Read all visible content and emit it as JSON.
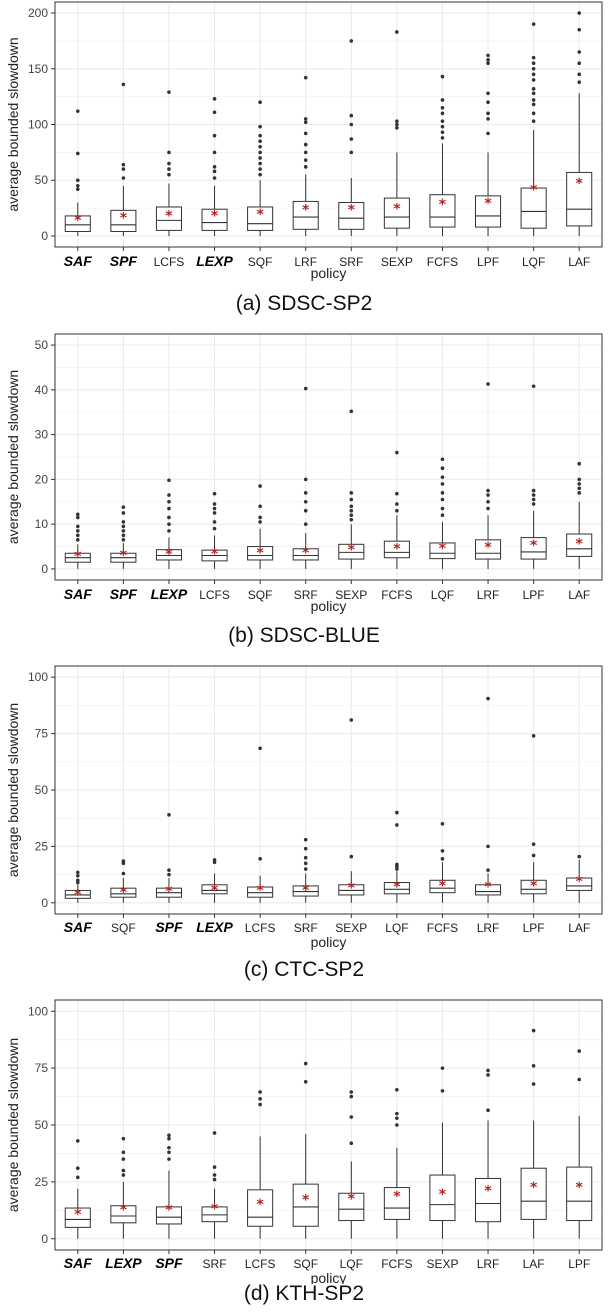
{
  "colors": {
    "mean": "#b22222",
    "outlier": "#333333",
    "grid": "#ebebeb",
    "box": "#333333"
  },
  "captions": [
    "(a) SDSC-SP2",
    "(b) SDSC-BLUE",
    "(c) CTC-SP2",
    "(d) KTH-SP2"
  ],
  "chart_data": [
    {
      "type": "box",
      "caption": "(a) SDSC-SP2",
      "xlabel": "policy",
      "ylabel": "average bounded slowdown",
      "ylim": [
        0,
        200
      ],
      "yticks": [
        0,
        50,
        100,
        150,
        200
      ],
      "grid": true,
      "categories": [
        "SAF",
        "SPF",
        "LCFS",
        "LEXP",
        "SQF",
        "LRF",
        "SRF",
        "SEXP",
        "FCFS",
        "LPF",
        "LQF",
        "LAF"
      ],
      "bold_categories": [
        "SAF",
        "SPF",
        "LEXP"
      ],
      "boxes": [
        {
          "min": 0,
          "q1": 4,
          "median": 10,
          "q3": 18,
          "max": 30,
          "mean": 15,
          "outliers": [
            42,
            45,
            50,
            74,
            112
          ]
        },
        {
          "min": 0,
          "q1": 4,
          "median": 10,
          "q3": 23,
          "max": 45,
          "mean": 17,
          "outliers": [
            52,
            60,
            64,
            136
          ]
        },
        {
          "min": 0,
          "q1": 5,
          "median": 14,
          "q3": 26,
          "max": 47,
          "mean": 19,
          "outliers": [
            55,
            60,
            65,
            75,
            129
          ]
        },
        {
          "min": 0,
          "q1": 5,
          "median": 12,
          "q3": 24,
          "max": 45,
          "mean": 19,
          "outliers": [
            52,
            58,
            62,
            75,
            90,
            111,
            123
          ]
        },
        {
          "min": 0,
          "q1": 5,
          "median": 11,
          "q3": 26,
          "max": 50,
          "mean": 20,
          "outliers": [
            55,
            60,
            65,
            70,
            75,
            80,
            85,
            90,
            98,
            120
          ]
        },
        {
          "min": 0,
          "q1": 6,
          "median": 17,
          "q3": 31,
          "max": 55,
          "mean": 24,
          "outliers": [
            62,
            68,
            75,
            82,
            92,
            102,
            105,
            142
          ]
        },
        {
          "min": 0,
          "q1": 6,
          "median": 16,
          "q3": 30,
          "max": 52,
          "mean": 24,
          "outliers": [
            75,
            87,
            100,
            108,
            175
          ]
        },
        {
          "min": 0,
          "q1": 7,
          "median": 17,
          "q3": 34,
          "max": 75,
          "mean": 25,
          "outliers": [
            97,
            100,
            103,
            183
          ]
        },
        {
          "min": 0,
          "q1": 8,
          "median": 17,
          "q3": 37,
          "max": 83,
          "mean": 29,
          "outliers": [
            88,
            93,
            98,
            103,
            110,
            115,
            122,
            143
          ]
        },
        {
          "min": 0,
          "q1": 8,
          "median": 18,
          "q3": 36,
          "max": 75,
          "mean": 30,
          "outliers": [
            92,
            105,
            110,
            120,
            128,
            155,
            158,
            162
          ]
        },
        {
          "min": 0,
          "q1": 7,
          "median": 22,
          "q3": 43,
          "max": 95,
          "mean": 42,
          "outliers": [
            103,
            110,
            118,
            122,
            128,
            132,
            140,
            145,
            150,
            155,
            160,
            190
          ]
        },
        {
          "min": 0,
          "q1": 9,
          "median": 24,
          "q3": 57,
          "max": 128,
          "mean": 48,
          "outliers": [
            138,
            145,
            155,
            165,
            185,
            200
          ]
        }
      ]
    },
    {
      "type": "box",
      "caption": "(b) SDSC-BLUE",
      "xlabel": "policy",
      "ylabel": "average bounded slowdown",
      "ylim": [
        0,
        50
      ],
      "yticks": [
        0,
        10,
        20,
        30,
        40,
        50
      ],
      "grid": true,
      "categories": [
        "SAF",
        "SPF",
        "LEXP",
        "LCFS",
        "SQF",
        "SRF",
        "SEXP",
        "FCFS",
        "LQF",
        "LRF",
        "LPF",
        "LAF"
      ],
      "bold_categories": [
        "SAF",
        "SPF",
        "LEXP"
      ],
      "boxes": [
        {
          "min": 0,
          "q1": 1.5,
          "median": 2.5,
          "q3": 3.5,
          "max": 5.5,
          "mean": 3.0,
          "outliers": [
            6.5,
            7.5,
            8.5,
            9.5,
            11.5,
            12.2
          ]
        },
        {
          "min": 0,
          "q1": 1.5,
          "median": 2.5,
          "q3": 3.5,
          "max": 5.8,
          "mean": 3.2,
          "outliers": [
            6.5,
            7.5,
            8.5,
            9.5,
            10.5,
            12.5,
            13.8
          ]
        },
        {
          "min": 0,
          "q1": 2,
          "median": 3,
          "q3": 4.3,
          "max": 7,
          "mean": 3.5,
          "outliers": [
            8.5,
            10,
            11.5,
            13.5,
            15,
            16.5,
            19.8
          ]
        },
        {
          "min": 0,
          "q1": 1.8,
          "median": 3,
          "q3": 4.2,
          "max": 7.5,
          "mean": 3.6,
          "outliers": [
            9,
            10.5,
            12.5,
            13.5,
            14.5,
            16.8
          ]
        },
        {
          "min": 0,
          "q1": 2,
          "median": 3,
          "q3": 5,
          "max": 9,
          "mean": 3.8,
          "outliers": [
            10.5,
            11.5,
            14,
            18.5
          ]
        },
        {
          "min": 0,
          "q1": 2,
          "median": 3,
          "q3": 4.5,
          "max": 8,
          "mean": 3.8,
          "outliers": [
            10,
            13,
            15,
            17,
            20,
            40.3
          ]
        },
        {
          "min": 0,
          "q1": 2.2,
          "median": 3.7,
          "q3": 5.5,
          "max": 10,
          "mean": 4.5,
          "outliers": [
            11,
            12,
            13,
            14,
            15.5,
            17,
            35.2
          ]
        },
        {
          "min": 0,
          "q1": 2.5,
          "median": 3.7,
          "q3": 6.2,
          "max": 12,
          "mean": 4.7,
          "outliers": [
            13,
            14.5,
            16.8,
            26
          ]
        },
        {
          "min": 0,
          "q1": 2.3,
          "median": 3.5,
          "q3": 5.8,
          "max": 10.5,
          "mean": 4.8,
          "outliers": [
            12,
            13.5,
            15.5,
            17,
            19,
            20.5,
            22.5,
            24.5
          ]
        },
        {
          "min": 0,
          "q1": 2.2,
          "median": 3.5,
          "q3": 6.5,
          "max": 12,
          "mean": 5.0,
          "outliers": [
            13.5,
            15,
            16.5,
            17.5,
            41.3
          ]
        },
        {
          "min": 0,
          "q1": 2.2,
          "median": 3.8,
          "q3": 7,
          "max": 13,
          "mean": 5.5,
          "outliers": [
            14.5,
            15.5,
            16.5,
            17.5,
            40.8
          ]
        },
        {
          "min": 0,
          "q1": 2.8,
          "median": 4.5,
          "q3": 7.8,
          "max": 15,
          "mean": 5.8,
          "outliers": [
            17,
            18,
            19,
            20,
            23.5
          ]
        }
      ]
    },
    {
      "type": "box",
      "caption": "(c) CTC-SP2",
      "xlabel": "policy",
      "ylabel": "average bounded slowdown",
      "ylim": [
        0,
        100
      ],
      "yticks": [
        0,
        25,
        50,
        75,
        100
      ],
      "grid": true,
      "categories": [
        "SAF",
        "SQF",
        "SPF",
        "LEXP",
        "LCFS",
        "SRF",
        "SEXP",
        "LQF",
        "FCFS",
        "LRF",
        "LPF",
        "LAF"
      ],
      "bold_categories": [
        "SAF",
        "SPF",
        "LEXP"
      ],
      "boxes": [
        {
          "min": 0,
          "q1": 2,
          "median": 3.5,
          "q3": 5.5,
          "max": 8,
          "mean": 4,
          "outliers": [
            9,
            10,
            12,
            13.5
          ]
        },
        {
          "min": 0,
          "q1": 2.5,
          "median": 4,
          "q3": 6.5,
          "max": 11,
          "mean": 5,
          "outliers": [
            13,
            17.5,
            18.5
          ]
        },
        {
          "min": 0,
          "q1": 2.5,
          "median": 4.5,
          "q3": 6.5,
          "max": 11,
          "mean": 5.5,
          "outliers": [
            12.5,
            14.5,
            39
          ]
        },
        {
          "min": 0,
          "q1": 4,
          "median": 5.5,
          "q3": 8,
          "max": 13,
          "mean": 6,
          "outliers": [
            18,
            19
          ]
        },
        {
          "min": 0,
          "q1": 2.5,
          "median": 4.5,
          "q3": 7,
          "max": 12,
          "mean": 6,
          "outliers": [
            19.5,
            68.5
          ]
        },
        {
          "min": 0,
          "q1": 3,
          "median": 5,
          "q3": 7.5,
          "max": 13,
          "mean": 6,
          "outliers": [
            15,
            17.5,
            20,
            24,
            28
          ]
        },
        {
          "min": 0,
          "q1": 3.5,
          "median": 5.5,
          "q3": 8,
          "max": 14,
          "mean": 7,
          "outliers": [
            20.5,
            81
          ]
        },
        {
          "min": 0,
          "q1": 4,
          "median": 6,
          "q3": 9,
          "max": 14,
          "mean": 7.5,
          "outliers": [
            15,
            16,
            17,
            34.5,
            40
          ]
        },
        {
          "min": 0,
          "q1": 4.5,
          "median": 6.5,
          "q3": 10,
          "max": 18,
          "mean": 8,
          "outliers": [
            19.5,
            23,
            35
          ]
        },
        {
          "min": 0,
          "q1": 3.5,
          "median": 5,
          "q3": 8,
          "max": 13,
          "mean": 7.5,
          "outliers": [
            14.5,
            25,
            90.5
          ]
        },
        {
          "min": 0,
          "q1": 4,
          "median": 6,
          "q3": 10,
          "max": 18,
          "mean": 8,
          "outliers": [
            21,
            26,
            74
          ]
        },
        {
          "min": 0,
          "q1": 5.5,
          "median": 7.5,
          "q3": 11,
          "max": 19,
          "mean": 10,
          "outliers": [
            20.5
          ]
        }
      ]
    },
    {
      "type": "box",
      "caption": "(d) KTH-SP2",
      "xlabel": "policy",
      "ylabel": "average bounded slowdown",
      "ylim": [
        0,
        100
      ],
      "yticks": [
        0,
        25,
        50,
        75,
        100
      ],
      "grid": true,
      "categories": [
        "SAF",
        "LEXP",
        "SPF",
        "SRF",
        "LCFS",
        "SQF",
        "LQF",
        "FCFS",
        "SEXP",
        "LRF",
        "LAF",
        "LPF"
      ],
      "bold_categories": [
        "SAF",
        "LEXP",
        "SPF"
      ],
      "boxes": [
        {
          "min": 0,
          "q1": 5,
          "median": 8.5,
          "q3": 13.5,
          "max": 22,
          "mean": 11,
          "outliers": [
            27,
            31,
            43
          ]
        },
        {
          "min": 0,
          "q1": 7,
          "median": 10,
          "q3": 14.5,
          "max": 25,
          "mean": 13,
          "outliers": [
            28,
            30,
            35,
            38,
            44
          ]
        },
        {
          "min": 0,
          "q1": 6.5,
          "median": 9.5,
          "q3": 14,
          "max": 30,
          "mean": 13,
          "outliers": [
            35,
            38,
            40,
            44,
            45.5
          ]
        },
        {
          "min": 0,
          "q1": 7.5,
          "median": 10.5,
          "q3": 14,
          "max": 22,
          "mean": 13.5,
          "outliers": [
            26,
            28,
            31.5,
            46.5
          ]
        },
        {
          "min": 0,
          "q1": 5.5,
          "median": 9.5,
          "q3": 21.5,
          "max": 45,
          "mean": 15.5,
          "outliers": [
            59,
            61.5,
            64.5
          ]
        },
        {
          "min": 0,
          "q1": 5.5,
          "median": 14,
          "q3": 24,
          "max": 46,
          "mean": 17.5,
          "outliers": [
            69,
            77
          ]
        },
        {
          "min": 0,
          "q1": 8,
          "median": 13,
          "q3": 20,
          "max": 34,
          "mean": 18,
          "outliers": [
            42,
            53.5,
            62.5,
            64.5
          ]
        },
        {
          "min": 0,
          "q1": 8.5,
          "median": 13.5,
          "q3": 22.5,
          "max": 40,
          "mean": 19,
          "outliers": [
            50,
            53,
            55,
            65.5
          ]
        },
        {
          "min": 0,
          "q1": 8,
          "median": 15,
          "q3": 28,
          "max": 51,
          "mean": 20,
          "outliers": [
            65,
            75
          ]
        },
        {
          "min": 0,
          "q1": 7.5,
          "median": 15.5,
          "q3": 26.5,
          "max": 52,
          "mean": 21.5,
          "outliers": [
            56.5,
            72,
            74
          ]
        },
        {
          "min": 0,
          "q1": 8.5,
          "median": 16.5,
          "q3": 31,
          "max": 52,
          "mean": 23,
          "outliers": [
            68,
            76,
            91.5
          ]
        },
        {
          "min": 0,
          "q1": 8,
          "median": 16.5,
          "q3": 31.5,
          "max": 54,
          "mean": 23,
          "outliers": [
            70,
            82.5
          ]
        }
      ]
    }
  ]
}
